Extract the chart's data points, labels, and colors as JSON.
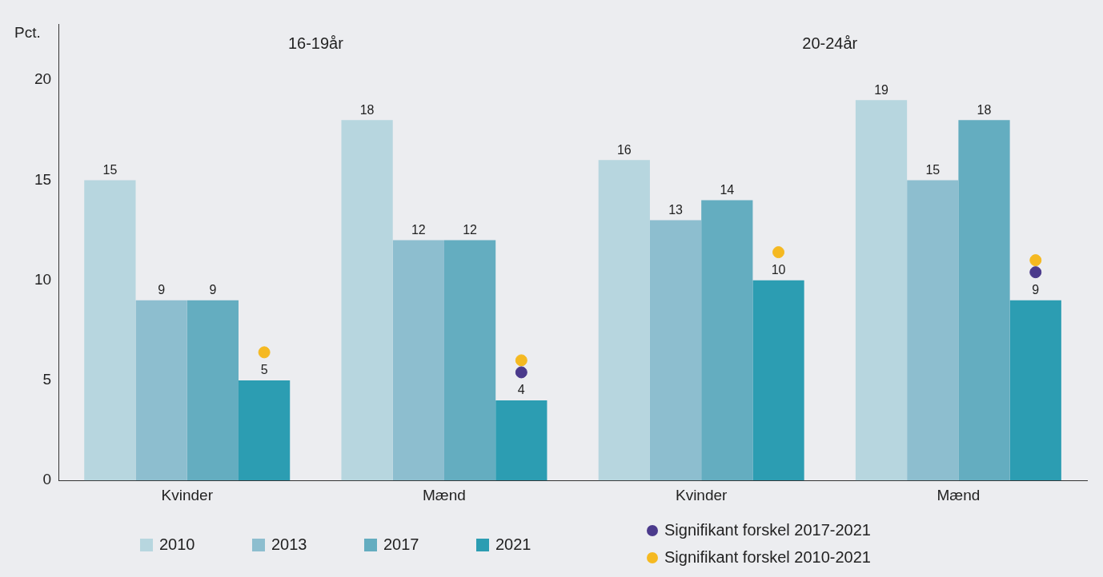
{
  "chart_data": {
    "type": "bar",
    "ylabel": "Pct.",
    "annotations": [
      "16-19år",
      "20-24år"
    ],
    "categories": [
      "Kvinder",
      "Mænd",
      "Kvinder",
      "Mænd"
    ],
    "series": [
      {
        "name": "2010",
        "color": "#b7d6df",
        "values": [
          15,
          18,
          16,
          19
        ],
        "value_labels": [
          "15",
          "18",
          "16",
          "19"
        ]
      },
      {
        "name": "2013",
        "color": "#8dbecf",
        "values": [
          9,
          12,
          13,
          15
        ],
        "value_labels": [
          "9",
          "12",
          "13",
          "15"
        ]
      },
      {
        "name": "2017",
        "color": "#64adc0",
        "values": [
          9,
          12,
          14,
          18
        ],
        "value_labels": [
          "9",
          "12",
          "14",
          "18"
        ]
      },
      {
        "name": "2021",
        "color": "#2c9db2",
        "values": [
          5,
          4,
          10,
          9
        ],
        "value_labels": [
          "5",
          "4",
          "10",
          "9"
        ]
      },
      {
        "name": "Signifikant forskel 2017-2021",
        "type": "scatter",
        "color": "#4b3a8c",
        "values": [
          null,
          5.4,
          null,
          10.4
        ]
      },
      {
        "name": "Signifikant forskel 2010-2021",
        "type": "scatter",
        "color": "#f5b921",
        "values": [
          6.4,
          6.0,
          11.4,
          11.0
        ]
      }
    ],
    "ylim": [
      0,
      22.8
    ],
    "yticks": [
      0,
      5,
      10,
      15,
      20
    ],
    "legend": "bottom",
    "marker": "circle"
  }
}
